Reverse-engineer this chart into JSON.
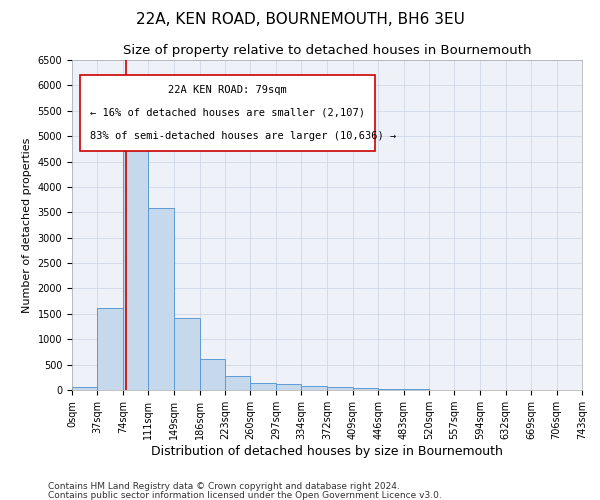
{
  "title": "22A, KEN ROAD, BOURNEMOUTH, BH6 3EU",
  "subtitle": "Size of property relative to detached houses in Bournemouth",
  "xlabel": "Distribution of detached houses by size in Bournemouth",
  "ylabel": "Number of detached properties",
  "footer1": "Contains HM Land Registry data © Crown copyright and database right 2024.",
  "footer2": "Contains public sector information licensed under the Open Government Licence v3.0.",
  "annotation_title": "22A KEN ROAD: 79sqm",
  "annotation_line1": "← 16% of detached houses are smaller (2,107)",
  "annotation_line2": "83% of semi-detached houses are larger (10,636) →",
  "property_sqm": 79,
  "bar_bins": [
    0,
    37,
    74,
    111,
    149,
    186,
    223,
    260,
    297,
    334,
    372,
    409,
    446,
    483,
    520,
    557,
    594,
    632,
    669,
    706,
    743
  ],
  "bar_values": [
    55,
    1620,
    5100,
    3580,
    1420,
    620,
    280,
    130,
    110,
    75,
    55,
    35,
    20,
    10,
    5,
    3,
    2,
    1,
    1,
    1
  ],
  "bar_color": "#c5d8ec",
  "bar_edge_color": "#5b9bd5",
  "grid_color": "#d0d8e8",
  "background_color": "#eef2f8",
  "vline_color": "#cc0000",
  "annotation_box_color": "#cc0000",
  "ylim": [
    0,
    6500
  ],
  "yticks": [
    0,
    500,
    1000,
    1500,
    2000,
    2500,
    3000,
    3500,
    4000,
    4500,
    5000,
    5500,
    6000,
    6500
  ],
  "title_fontsize": 11,
  "subtitle_fontsize": 9.5,
  "xlabel_fontsize": 9,
  "ylabel_fontsize": 8,
  "tick_fontsize": 7,
  "annotation_fontsize": 7.5,
  "footer_fontsize": 6.5
}
